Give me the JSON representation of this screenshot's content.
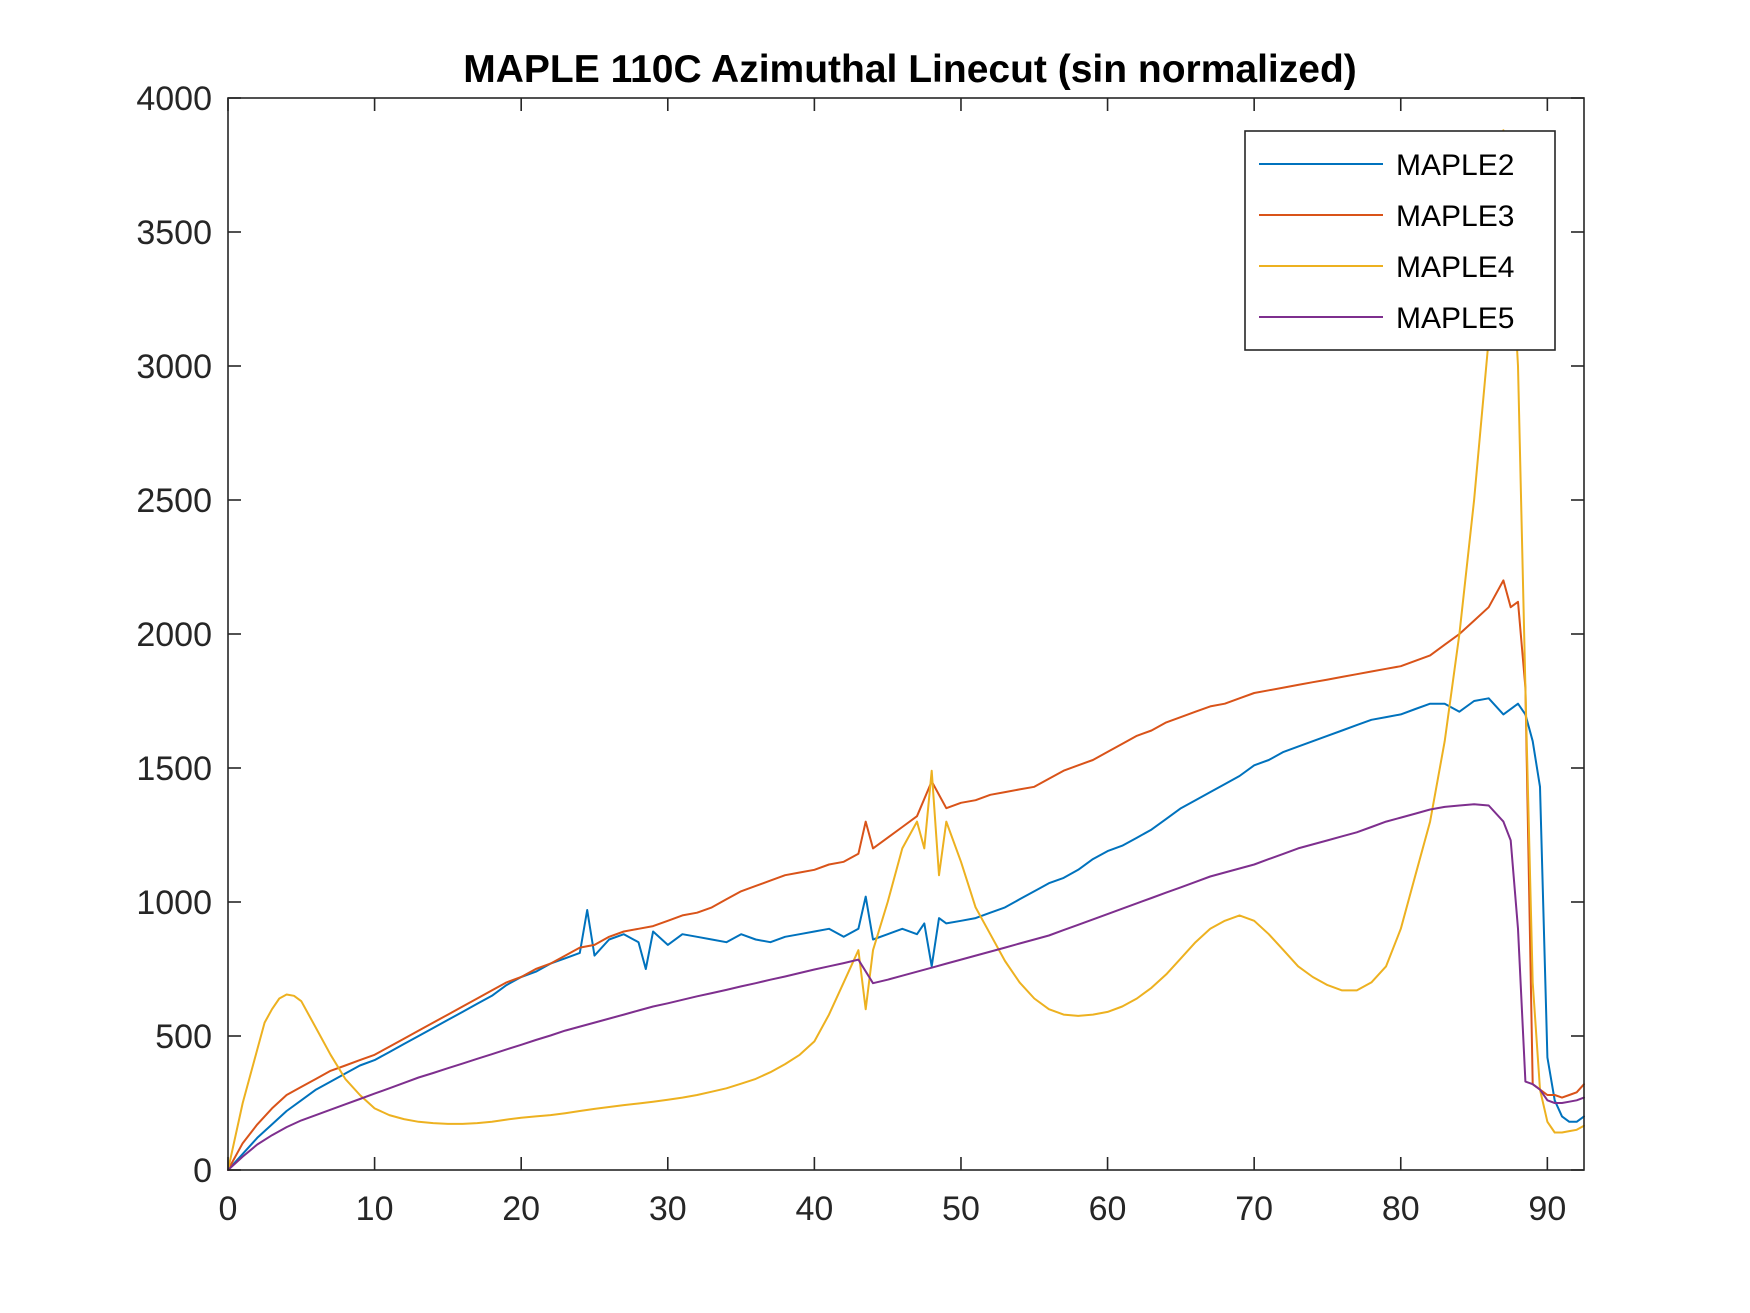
{
  "chart_data": {
    "type": "line",
    "title": "MAPLE 110C Azimuthal Linecut (sin normalized)",
    "xlabel": "",
    "ylabel": "",
    "xlim": [
      0,
      92.5
    ],
    "ylim": [
      0,
      4000
    ],
    "xticks": [
      0,
      10,
      20,
      30,
      40,
      50,
      60,
      70,
      80,
      90
    ],
    "yticks": [
      0,
      500,
      1000,
      1500,
      2000,
      2500,
      3000,
      3500,
      4000
    ],
    "xtick_labels": [
      "0",
      "10",
      "20",
      "30",
      "40",
      "50",
      "60",
      "70",
      "80",
      "90"
    ],
    "ytick_labels": [
      "0",
      "500",
      "1000",
      "1500",
      "2000",
      "2500",
      "3000",
      "3500",
      "4000"
    ],
    "grid": false,
    "legend_position": "top-right",
    "series": [
      {
        "name": "MAPLE2",
        "color": "#0072BD",
        "x": [
          0,
          1,
          2,
          3,
          4,
          5,
          6,
          7,
          8,
          9,
          10,
          11,
          12,
          13,
          14,
          15,
          16,
          17,
          18,
          19,
          20,
          21,
          22,
          23,
          24,
          24.5,
          25,
          26,
          27,
          28,
          28.5,
          29,
          30,
          31,
          32,
          33,
          34,
          35,
          36,
          37,
          38,
          39,
          40,
          41,
          42,
          43,
          43.5,
          44,
          45,
          46,
          47,
          47.5,
          48,
          48.5,
          49,
          50,
          51,
          52,
          53,
          54,
          55,
          56,
          57,
          58,
          59,
          60,
          61,
          62,
          63,
          64,
          65,
          66,
          67,
          68,
          69,
          70,
          71,
          72,
          73,
          74,
          75,
          76,
          77,
          78,
          79,
          80,
          81,
          82,
          83,
          84,
          85,
          86,
          87,
          88,
          88.5,
          89,
          89.5,
          90,
          90.5,
          91,
          91.5,
          92,
          92.5
        ],
        "y": [
          0,
          60,
          120,
          170,
          220,
          260,
          300,
          330,
          360,
          390,
          410,
          440,
          470,
          500,
          530,
          560,
          590,
          620,
          650,
          690,
          720,
          740,
          770,
          790,
          810,
          970,
          800,
          860,
          880,
          850,
          750,
          890,
          840,
          880,
          870,
          860,
          850,
          880,
          860,
          850,
          870,
          880,
          890,
          900,
          870,
          900,
          1020,
          860,
          880,
          900,
          880,
          920,
          760,
          940,
          920,
          930,
          940,
          960,
          980,
          1010,
          1040,
          1070,
          1090,
          1120,
          1160,
          1190,
          1210,
          1240,
          1270,
          1310,
          1350,
          1380,
          1410,
          1440,
          1470,
          1510,
          1530,
          1560,
          1580,
          1600,
          1620,
          1640,
          1660,
          1680,
          1690,
          1700,
          1720,
          1740,
          1740,
          1710,
          1750,
          1760,
          1700,
          1740,
          1700,
          1600,
          1430,
          420,
          260,
          200,
          180,
          180,
          200
        ]
      },
      {
        "name": "MAPLE3",
        "color": "#D95319",
        "x": [
          0,
          1,
          2,
          3,
          4,
          5,
          6,
          7,
          8,
          9,
          10,
          11,
          12,
          13,
          14,
          15,
          16,
          17,
          18,
          19,
          20,
          21,
          22,
          23,
          24,
          25,
          26,
          27,
          28,
          29,
          30,
          31,
          32,
          33,
          34,
          35,
          36,
          37,
          38,
          39,
          40,
          41,
          42,
          43,
          43.5,
          44,
          45,
          46,
          47,
          48,
          49,
          50,
          51,
          52,
          53,
          54,
          55,
          56,
          57,
          58,
          59,
          60,
          61,
          62,
          63,
          64,
          65,
          66,
          67,
          68,
          69,
          70,
          71,
          72,
          73,
          74,
          75,
          76,
          77,
          78,
          79,
          80,
          81,
          82,
          83,
          84,
          85,
          86,
          87,
          87.5,
          88,
          88.5,
          89,
          89.5,
          90,
          90.5,
          91,
          91.5,
          92,
          92.5
        ],
        "y": [
          0,
          100,
          170,
          230,
          280,
          310,
          340,
          370,
          390,
          410,
          430,
          460,
          490,
          520,
          550,
          580,
          610,
          640,
          670,
          700,
          720,
          750,
          770,
          800,
          830,
          840,
          870,
          890,
          900,
          910,
          930,
          950,
          960,
          980,
          1010,
          1040,
          1060,
          1080,
          1100,
          1110,
          1120,
          1140,
          1150,
          1180,
          1300,
          1200,
          1240,
          1280,
          1320,
          1450,
          1350,
          1370,
          1380,
          1400,
          1410,
          1420,
          1430,
          1460,
          1490,
          1510,
          1530,
          1560,
          1590,
          1620,
          1640,
          1670,
          1690,
          1710,
          1730,
          1740,
          1760,
          1780,
          1790,
          1800,
          1810,
          1820,
          1830,
          1840,
          1850,
          1860,
          1870,
          1880,
          1900,
          1920,
          1960,
          2000,
          2050,
          2100,
          2200,
          2100,
          2120,
          1800,
          320,
          300,
          280,
          280,
          270,
          280,
          290,
          320
        ]
      },
      {
        "name": "MAPLE4",
        "color": "#EDB120",
        "x": [
          0,
          1,
          2,
          2.5,
          3,
          3.5,
          4,
          4.5,
          5,
          6,
          7,
          8,
          9,
          10,
          11,
          12,
          13,
          14,
          15,
          16,
          17,
          18,
          19,
          20,
          21,
          22,
          23,
          24,
          25,
          26,
          27,
          28,
          29,
          30,
          31,
          32,
          33,
          34,
          35,
          36,
          37,
          38,
          39,
          40,
          41,
          42,
          43,
          43.5,
          44,
          45,
          46,
          47,
          47.5,
          48,
          48.5,
          49,
          50,
          51,
          52,
          53,
          54,
          55,
          56,
          57,
          58,
          59,
          60,
          61,
          62,
          63,
          64,
          65,
          66,
          67,
          68,
          69,
          70,
          71,
          72,
          73,
          74,
          75,
          76,
          77,
          78,
          79,
          80,
          81,
          82,
          83,
          84,
          85,
          86,
          86.5,
          87,
          87.5,
          88,
          88.5,
          89,
          89.5,
          90,
          90.5,
          91,
          91.5,
          92,
          92.5
        ],
        "y": [
          0,
          250,
          450,
          550,
          600,
          640,
          655,
          650,
          630,
          530,
          430,
          340,
          280,
          230,
          205,
          190,
          180,
          175,
          172,
          172,
          175,
          180,
          188,
          195,
          200,
          205,
          212,
          220,
          228,
          235,
          242,
          248,
          255,
          262,
          270,
          280,
          292,
          305,
          322,
          340,
          365,
          395,
          430,
          480,
          580,
          700,
          820,
          600,
          820,
          1000,
          1200,
          1300,
          1200,
          1490,
          1100,
          1300,
          1150,
          980,
          880,
          780,
          700,
          640,
          600,
          580,
          575,
          580,
          590,
          610,
          640,
          680,
          730,
          790,
          850,
          900,
          930,
          950,
          930,
          880,
          820,
          760,
          720,
          690,
          670,
          670,
          700,
          760,
          900,
          1100,
          1300,
          1600,
          2000,
          2500,
          3100,
          3500,
          3880,
          3500,
          3000,
          1800,
          700,
          300,
          180,
          140,
          140,
          145,
          150,
          165
        ]
      },
      {
        "name": "MAPLE5",
        "color": "#7E2F8E",
        "x": [
          0,
          1,
          2,
          3,
          4,
          5,
          6,
          7,
          8,
          9,
          10,
          11,
          12,
          13,
          14,
          15,
          16,
          17,
          18,
          19,
          20,
          21,
          22,
          23,
          24,
          25,
          26,
          27,
          28,
          29,
          30,
          31,
          32,
          33,
          34,
          35,
          36,
          37,
          38,
          39,
          40,
          41,
          42,
          43,
          44,
          45,
          46,
          47,
          48,
          49,
          50,
          51,
          52,
          53,
          54,
          55,
          56,
          57,
          58,
          59,
          60,
          61,
          62,
          63,
          64,
          65,
          66,
          67,
          68,
          69,
          70,
          71,
          72,
          73,
          74,
          75,
          76,
          77,
          78,
          79,
          80,
          81,
          82,
          83,
          84,
          85,
          86,
          87,
          87.5,
          88,
          88.5,
          89,
          89.5,
          90,
          90.5,
          91,
          91.5,
          92,
          92.5
        ],
        "y": [
          0,
          50,
          95,
          130,
          160,
          185,
          205,
          225,
          245,
          265,
          285,
          305,
          325,
          345,
          362,
          380,
          397,
          415,
          432,
          450,
          467,
          485,
          502,
          520,
          535,
          550,
          565,
          580,
          595,
          610,
          622,
          635,
          648,
          660,
          672,
          685,
          697,
          710,
          722,
          735,
          748,
          760,
          772,
          785,
          697,
          710,
          725,
          740,
          755,
          770,
          785,
          800,
          815,
          830,
          845,
          860,
          875,
          895,
          915,
          935,
          955,
          975,
          995,
          1015,
          1035,
          1055,
          1075,
          1095,
          1110,
          1125,
          1140,
          1160,
          1180,
          1200,
          1215,
          1230,
          1245,
          1260,
          1280,
          1300,
          1315,
          1330,
          1345,
          1355,
          1360,
          1365,
          1360,
          1300,
          1230,
          900,
          330,
          320,
          300,
          260,
          250,
          250,
          255,
          260,
          270
        ]
      }
    ]
  }
}
